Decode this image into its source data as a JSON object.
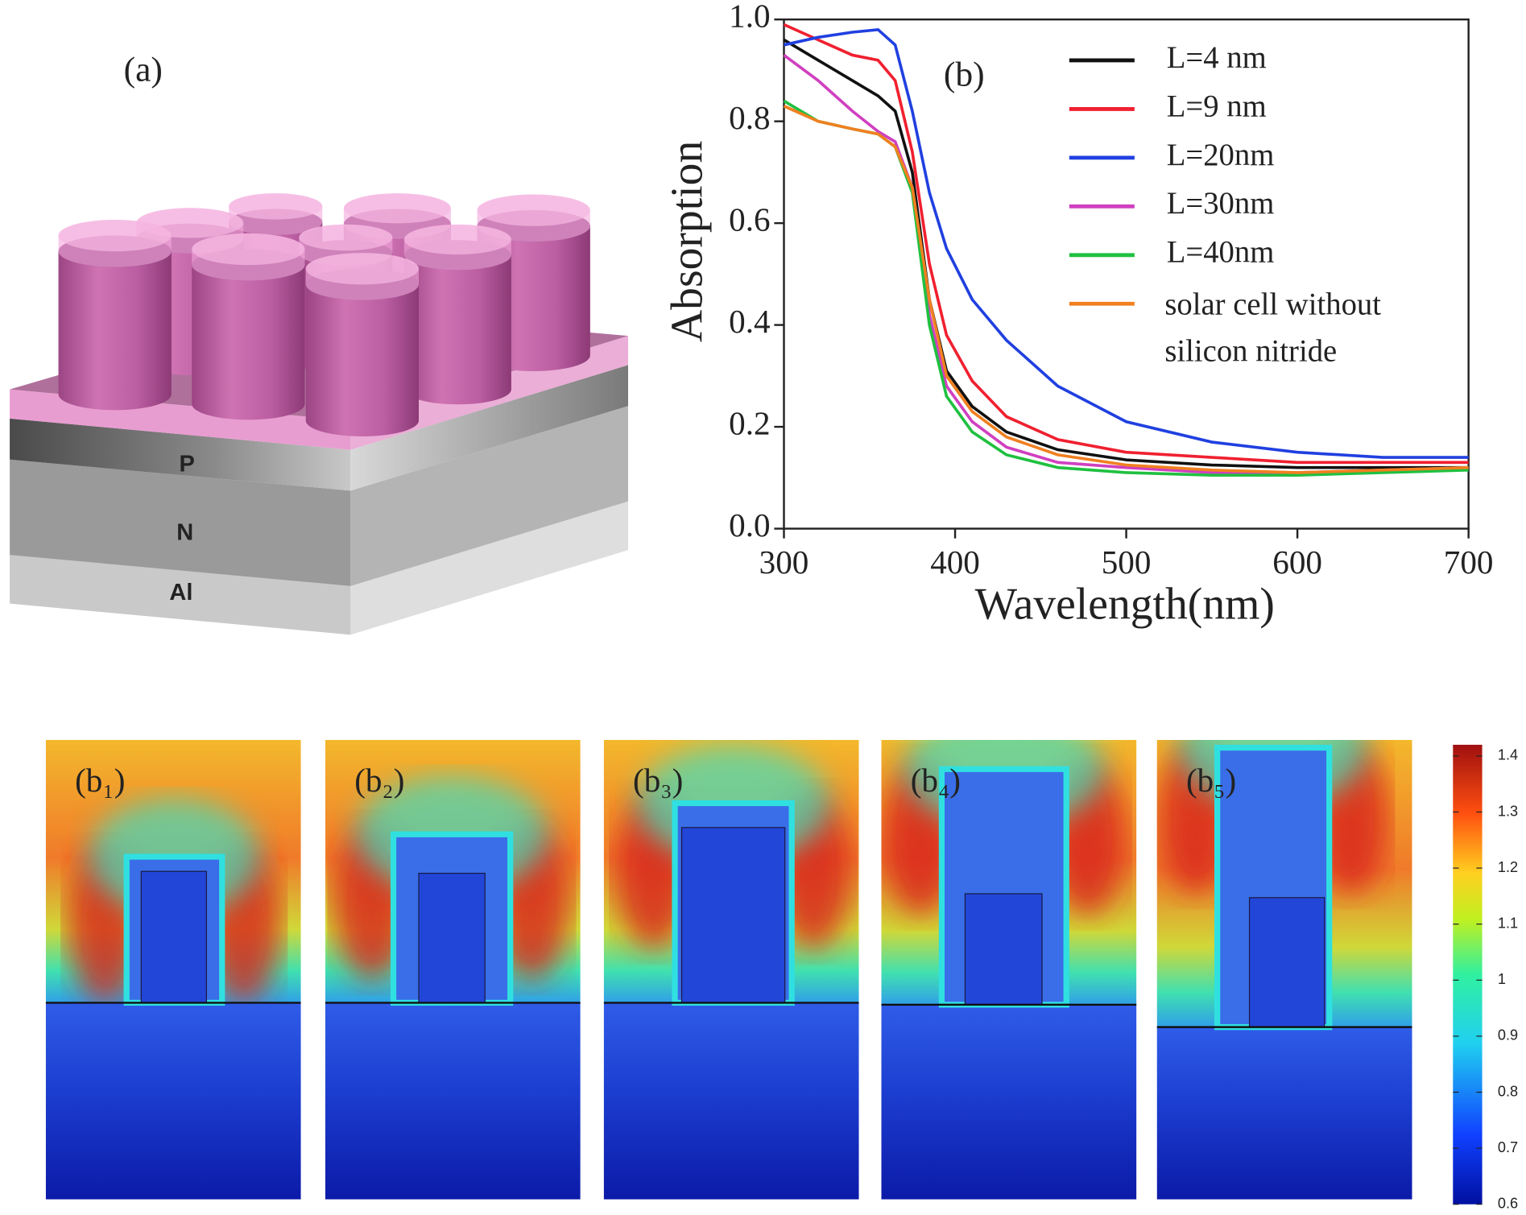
{
  "figure_a": {
    "label": "(a)",
    "layers": [
      "P",
      "N",
      "Al"
    ]
  },
  "chart_data": {
    "type": "line",
    "panel_label": "(b)",
    "x_label": "Wavelength(nm)",
    "y_label": "Absorption",
    "x": [
      300,
      320,
      340,
      355,
      365,
      375,
      385,
      395,
      410,
      430,
      460,
      500,
      550,
      600,
      650,
      700
    ],
    "series": [
      {
        "name": "L=4 nm",
        "color": "#111111",
        "values": [
          0.96,
          0.92,
          0.88,
          0.85,
          0.82,
          0.7,
          0.45,
          0.31,
          0.24,
          0.19,
          0.155,
          0.135,
          0.125,
          0.12,
          0.12,
          0.12
        ]
      },
      {
        "name": "L=9 nm",
        "color": "#f02030",
        "values": [
          0.99,
          0.96,
          0.93,
          0.92,
          0.88,
          0.74,
          0.52,
          0.38,
          0.29,
          0.22,
          0.175,
          0.15,
          0.14,
          0.13,
          0.13,
          0.13
        ]
      },
      {
        "name": "L=20nm",
        "color": "#2040e0",
        "values": [
          0.95,
          0.965,
          0.975,
          0.98,
          0.95,
          0.82,
          0.66,
          0.55,
          0.45,
          0.37,
          0.28,
          0.21,
          0.17,
          0.15,
          0.14,
          0.14
        ]
      },
      {
        "name": "L=30nm",
        "color": "#d040c0",
        "values": [
          0.93,
          0.88,
          0.82,
          0.78,
          0.76,
          0.67,
          0.42,
          0.28,
          0.21,
          0.16,
          0.13,
          0.12,
          0.11,
          0.11,
          0.115,
          0.12
        ]
      },
      {
        "name": "L=40nm",
        "color": "#20c040",
        "values": [
          0.84,
          0.8,
          0.785,
          0.775,
          0.75,
          0.66,
          0.4,
          0.26,
          0.19,
          0.145,
          0.12,
          0.11,
          0.105,
          0.105,
          0.11,
          0.115
        ]
      },
      {
        "name": "solar cell without silicon nitride",
        "color": "#f08020",
        "values": [
          0.83,
          0.8,
          0.785,
          0.775,
          0.75,
          0.67,
          0.45,
          0.3,
          0.23,
          0.18,
          0.145,
          0.125,
          0.115,
          0.11,
          0.115,
          0.12
        ]
      }
    ],
    "xlim": [
      300,
      700
    ],
    "xticks": [
      300,
      400,
      500,
      600,
      700
    ],
    "ylim": [
      0,
      1.0
    ],
    "yticks": [
      {
        "value": 0,
        "label": "0.0"
      },
      0.2,
      0.4,
      0.6,
      0.8,
      {
        "value": 1.0,
        "label": "1.0"
      }
    ]
  },
  "field_maps": {
    "labels": [
      "(b₁)",
      "(b₂)",
      "(b₃)",
      "(b₄)",
      "(b₅)"
    ],
    "colorbar": {
      "lim": [
        0.6,
        1.42
      ],
      "ticks": [
        0.6,
        0.7,
        0.8,
        0.9,
        1,
        1.1,
        1.2,
        1.3,
        1.4
      ]
    }
  }
}
